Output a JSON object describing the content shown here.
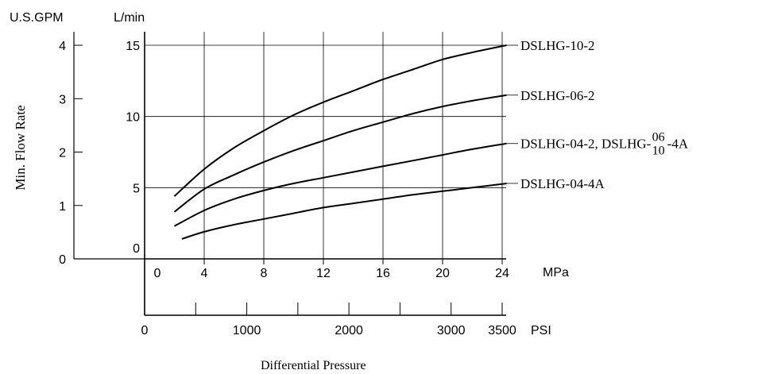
{
  "chart_data": {
    "type": "line",
    "title": "",
    "xlabel": "Differential Pressure",
    "ylabel": "Min. Flow Rate",
    "grid": true,
    "x_axis_primary": {
      "unit": "MPa",
      "range": [
        0,
        24
      ],
      "ticks": [
        "0",
        "4",
        "8",
        "12",
        "16",
        "20",
        "24"
      ]
    },
    "x_axis_secondary": {
      "unit": "PSI",
      "range": [
        0,
        3500
      ],
      "ticks": [
        "0",
        "1000",
        "2000",
        "3000",
        "3500"
      ]
    },
    "y_axis_primary": {
      "unit": "L/min",
      "range": [
        0,
        15
      ],
      "ticks": [
        "0",
        "5",
        "10",
        "15"
      ]
    },
    "y_axis_secondary": {
      "unit": "U.S.GPM",
      "range": [
        0,
        4
      ],
      "ticks": [
        "0",
        "1",
        "2",
        "3",
        "4"
      ]
    },
    "series": [
      {
        "name": "DSLHG-10-2",
        "x": [
          2,
          4,
          6,
          8,
          10,
          12,
          14,
          16,
          18,
          20,
          22,
          24.3
        ],
        "y": [
          4.4,
          6.3,
          7.8,
          9.0,
          10.1,
          11.0,
          11.8,
          12.6,
          13.3,
          14.0,
          14.5,
          15.0
        ]
      },
      {
        "name": "DSLHG-06-2",
        "x": [
          2,
          4,
          6,
          8,
          10,
          12,
          14,
          16,
          18,
          20,
          22,
          24.3
        ],
        "y": [
          3.3,
          4.9,
          5.9,
          6.8,
          7.6,
          8.3,
          9.0,
          9.6,
          10.2,
          10.7,
          11.1,
          11.5
        ]
      },
      {
        "name": "DSLHG-04-2, DSLHG-06/10-4A",
        "x": [
          2,
          4,
          6,
          8,
          10,
          12,
          14,
          16,
          18,
          20,
          22,
          24.3
        ],
        "y": [
          2.3,
          3.4,
          4.2,
          4.8,
          5.3,
          5.7,
          6.1,
          6.5,
          6.9,
          7.3,
          7.7,
          8.1
        ]
      },
      {
        "name": "DSLHG-04-4A",
        "x": [
          2.5,
          4,
          6,
          8,
          10,
          12,
          14,
          16,
          18,
          20,
          22,
          24.3
        ],
        "y": [
          1.4,
          1.9,
          2.4,
          2.8,
          3.2,
          3.6,
          3.9,
          4.2,
          4.5,
          4.75,
          5.0,
          5.3
        ]
      }
    ],
    "legend_labels": [
      {
        "main": "DSLHG-10-2"
      },
      {
        "main": "DSLHG-06-2"
      },
      {
        "main": "DSLHG-04-2, DSLHG-",
        "frac_top": "06",
        "frac_bottom": "10",
        "suffix": "-4A"
      },
      {
        "main": "DSLHG-04-4A"
      }
    ]
  }
}
